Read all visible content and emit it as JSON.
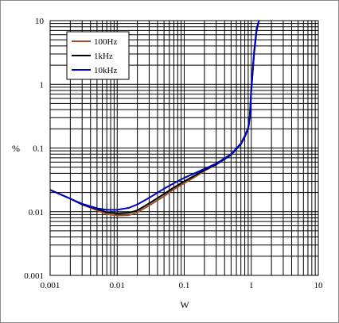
{
  "chart_data": {
    "type": "line",
    "title": "",
    "xlabel": "W",
    "ylabel": "%",
    "x_scale": "log",
    "y_scale": "log",
    "xlim": [
      0.001,
      10
    ],
    "ylim": [
      0.001,
      10
    ],
    "x_ticks": [
      "0.001",
      "0.01",
      "0.1",
      "1",
      "10"
    ],
    "y_ticks": [
      "0.001",
      "0.01",
      "0.1",
      "1",
      "10"
    ],
    "grid": true,
    "legend_position": "top-left",
    "series": [
      {
        "name": "100Hz",
        "color": "#a0522d",
        "x": [
          0.001,
          0.002,
          0.003,
          0.005,
          0.007,
          0.01,
          0.015,
          0.02,
          0.03,
          0.05,
          0.07,
          0.1,
          0.15,
          0.2,
          0.3,
          0.5,
          0.7,
          0.8,
          0.9,
          0.95,
          1.0,
          1.1,
          1.2,
          1.3
        ],
        "y": [
          0.022,
          0.016,
          0.013,
          0.0105,
          0.0092,
          0.0087,
          0.0088,
          0.0098,
          0.0125,
          0.0175,
          0.0225,
          0.028,
          0.036,
          0.044,
          0.055,
          0.078,
          0.115,
          0.15,
          0.2,
          0.3,
          0.8,
          3.0,
          7.0,
          10.0
        ]
      },
      {
        "name": "1kHz",
        "color": "#000000",
        "x": [
          0.001,
          0.002,
          0.003,
          0.005,
          0.007,
          0.01,
          0.015,
          0.02,
          0.03,
          0.05,
          0.07,
          0.1,
          0.15,
          0.2,
          0.3,
          0.5,
          0.7,
          0.8,
          0.9,
          0.95,
          1.0,
          1.1,
          1.2,
          1.3
        ],
        "y": [
          0.022,
          0.016,
          0.013,
          0.011,
          0.0098,
          0.0094,
          0.0096,
          0.0105,
          0.0135,
          0.019,
          0.024,
          0.03,
          0.038,
          0.045,
          0.055,
          0.078,
          0.115,
          0.15,
          0.2,
          0.3,
          0.8,
          3.0,
          7.0,
          10.0
        ]
      },
      {
        "name": "10kHz",
        "color": "#0000cc",
        "x": [
          0.001,
          0.002,
          0.003,
          0.005,
          0.007,
          0.01,
          0.015,
          0.02,
          0.03,
          0.05,
          0.07,
          0.1,
          0.15,
          0.2,
          0.3,
          0.5,
          0.7,
          0.8,
          0.9,
          0.95,
          1.0,
          1.1,
          1.2,
          1.3
        ],
        "y": [
          0.022,
          0.016,
          0.0133,
          0.0113,
          0.0107,
          0.0107,
          0.0115,
          0.013,
          0.0165,
          0.023,
          0.028,
          0.034,
          0.041,
          0.047,
          0.057,
          0.08,
          0.118,
          0.155,
          0.21,
          0.32,
          0.85,
          3.2,
          7.5,
          10.0
        ]
      }
    ]
  }
}
